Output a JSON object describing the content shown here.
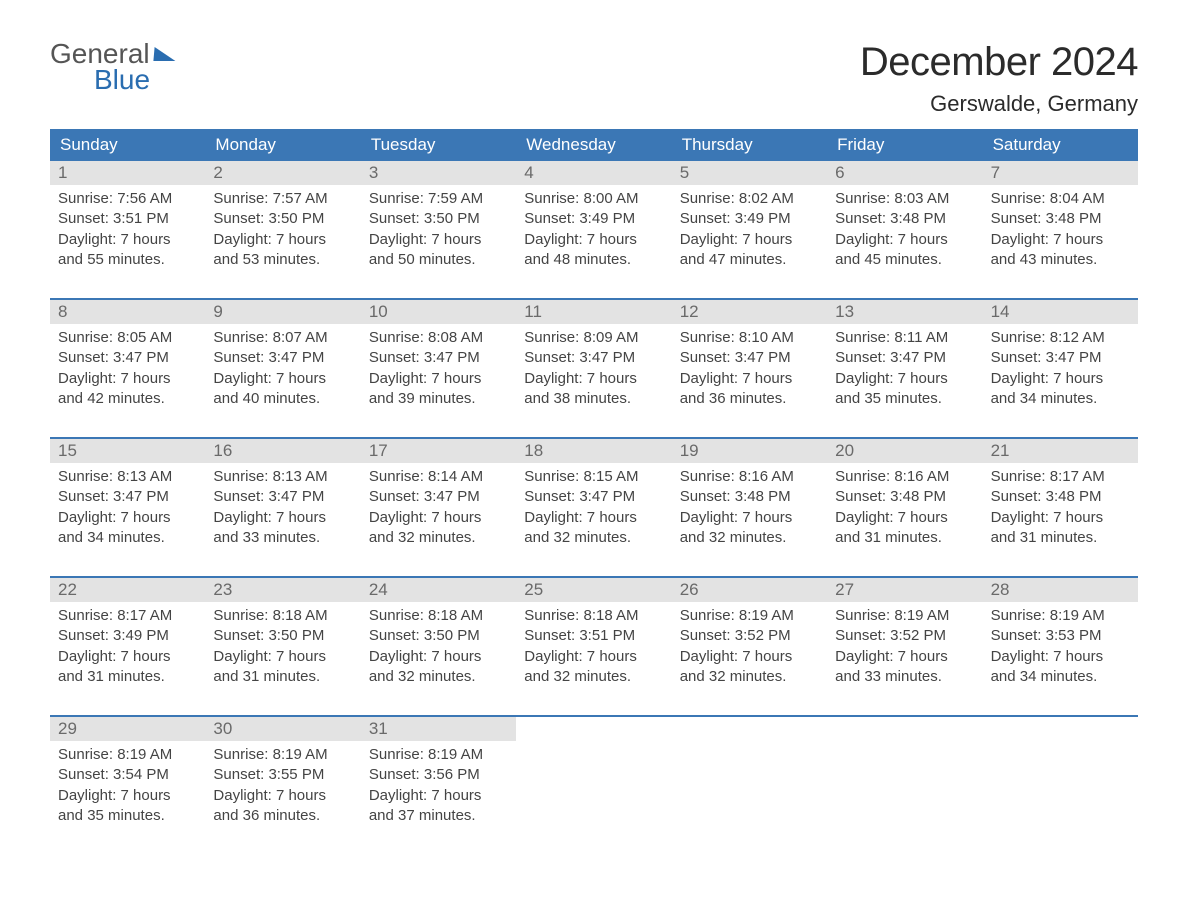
{
  "logo": {
    "top": "General",
    "bottom": "Blue"
  },
  "title": {
    "month": "December 2024",
    "location": "Gerswalde, Germany"
  },
  "colors": {
    "header_bg": "#3b77b5",
    "header_text": "#ffffff",
    "daynum_bg": "#e3e3e3",
    "daynum_text": "#6a6a6a",
    "body_text": "#444444",
    "rule": "#3b77b5",
    "logo_blue": "#2a6db0"
  },
  "weekdays": [
    "Sunday",
    "Monday",
    "Tuesday",
    "Wednesday",
    "Thursday",
    "Friday",
    "Saturday"
  ],
  "weeks": [
    [
      {
        "d": "1",
        "sunrise": "Sunrise: 7:56 AM",
        "sunset": "Sunset: 3:51 PM",
        "dl1": "Daylight: 7 hours",
        "dl2": "and 55 minutes."
      },
      {
        "d": "2",
        "sunrise": "Sunrise: 7:57 AM",
        "sunset": "Sunset: 3:50 PM",
        "dl1": "Daylight: 7 hours",
        "dl2": "and 53 minutes."
      },
      {
        "d": "3",
        "sunrise": "Sunrise: 7:59 AM",
        "sunset": "Sunset: 3:50 PM",
        "dl1": "Daylight: 7 hours",
        "dl2": "and 50 minutes."
      },
      {
        "d": "4",
        "sunrise": "Sunrise: 8:00 AM",
        "sunset": "Sunset: 3:49 PM",
        "dl1": "Daylight: 7 hours",
        "dl2": "and 48 minutes."
      },
      {
        "d": "5",
        "sunrise": "Sunrise: 8:02 AM",
        "sunset": "Sunset: 3:49 PM",
        "dl1": "Daylight: 7 hours",
        "dl2": "and 47 minutes."
      },
      {
        "d": "6",
        "sunrise": "Sunrise: 8:03 AM",
        "sunset": "Sunset: 3:48 PM",
        "dl1": "Daylight: 7 hours",
        "dl2": "and 45 minutes."
      },
      {
        "d": "7",
        "sunrise": "Sunrise: 8:04 AM",
        "sunset": "Sunset: 3:48 PM",
        "dl1": "Daylight: 7 hours",
        "dl2": "and 43 minutes."
      }
    ],
    [
      {
        "d": "8",
        "sunrise": "Sunrise: 8:05 AM",
        "sunset": "Sunset: 3:47 PM",
        "dl1": "Daylight: 7 hours",
        "dl2": "and 42 minutes."
      },
      {
        "d": "9",
        "sunrise": "Sunrise: 8:07 AM",
        "sunset": "Sunset: 3:47 PM",
        "dl1": "Daylight: 7 hours",
        "dl2": "and 40 minutes."
      },
      {
        "d": "10",
        "sunrise": "Sunrise: 8:08 AM",
        "sunset": "Sunset: 3:47 PM",
        "dl1": "Daylight: 7 hours",
        "dl2": "and 39 minutes."
      },
      {
        "d": "11",
        "sunrise": "Sunrise: 8:09 AM",
        "sunset": "Sunset: 3:47 PM",
        "dl1": "Daylight: 7 hours",
        "dl2": "and 38 minutes."
      },
      {
        "d": "12",
        "sunrise": "Sunrise: 8:10 AM",
        "sunset": "Sunset: 3:47 PM",
        "dl1": "Daylight: 7 hours",
        "dl2": "and 36 minutes."
      },
      {
        "d": "13",
        "sunrise": "Sunrise: 8:11 AM",
        "sunset": "Sunset: 3:47 PM",
        "dl1": "Daylight: 7 hours",
        "dl2": "and 35 minutes."
      },
      {
        "d": "14",
        "sunrise": "Sunrise: 8:12 AM",
        "sunset": "Sunset: 3:47 PM",
        "dl1": "Daylight: 7 hours",
        "dl2": "and 34 minutes."
      }
    ],
    [
      {
        "d": "15",
        "sunrise": "Sunrise: 8:13 AM",
        "sunset": "Sunset: 3:47 PM",
        "dl1": "Daylight: 7 hours",
        "dl2": "and 34 minutes."
      },
      {
        "d": "16",
        "sunrise": "Sunrise: 8:13 AM",
        "sunset": "Sunset: 3:47 PM",
        "dl1": "Daylight: 7 hours",
        "dl2": "and 33 minutes."
      },
      {
        "d": "17",
        "sunrise": "Sunrise: 8:14 AM",
        "sunset": "Sunset: 3:47 PM",
        "dl1": "Daylight: 7 hours",
        "dl2": "and 32 minutes."
      },
      {
        "d": "18",
        "sunrise": "Sunrise: 8:15 AM",
        "sunset": "Sunset: 3:47 PM",
        "dl1": "Daylight: 7 hours",
        "dl2": "and 32 minutes."
      },
      {
        "d": "19",
        "sunrise": "Sunrise: 8:16 AM",
        "sunset": "Sunset: 3:48 PM",
        "dl1": "Daylight: 7 hours",
        "dl2": "and 32 minutes."
      },
      {
        "d": "20",
        "sunrise": "Sunrise: 8:16 AM",
        "sunset": "Sunset: 3:48 PM",
        "dl1": "Daylight: 7 hours",
        "dl2": "and 31 minutes."
      },
      {
        "d": "21",
        "sunrise": "Sunrise: 8:17 AM",
        "sunset": "Sunset: 3:48 PM",
        "dl1": "Daylight: 7 hours",
        "dl2": "and 31 minutes."
      }
    ],
    [
      {
        "d": "22",
        "sunrise": "Sunrise: 8:17 AM",
        "sunset": "Sunset: 3:49 PM",
        "dl1": "Daylight: 7 hours",
        "dl2": "and 31 minutes."
      },
      {
        "d": "23",
        "sunrise": "Sunrise: 8:18 AM",
        "sunset": "Sunset: 3:50 PM",
        "dl1": "Daylight: 7 hours",
        "dl2": "and 31 minutes."
      },
      {
        "d": "24",
        "sunrise": "Sunrise: 8:18 AM",
        "sunset": "Sunset: 3:50 PM",
        "dl1": "Daylight: 7 hours",
        "dl2": "and 32 minutes."
      },
      {
        "d": "25",
        "sunrise": "Sunrise: 8:18 AM",
        "sunset": "Sunset: 3:51 PM",
        "dl1": "Daylight: 7 hours",
        "dl2": "and 32 minutes."
      },
      {
        "d": "26",
        "sunrise": "Sunrise: 8:19 AM",
        "sunset": "Sunset: 3:52 PM",
        "dl1": "Daylight: 7 hours",
        "dl2": "and 32 minutes."
      },
      {
        "d": "27",
        "sunrise": "Sunrise: 8:19 AM",
        "sunset": "Sunset: 3:52 PM",
        "dl1": "Daylight: 7 hours",
        "dl2": "and 33 minutes."
      },
      {
        "d": "28",
        "sunrise": "Sunrise: 8:19 AM",
        "sunset": "Sunset: 3:53 PM",
        "dl1": "Daylight: 7 hours",
        "dl2": "and 34 minutes."
      }
    ],
    [
      {
        "d": "29",
        "sunrise": "Sunrise: 8:19 AM",
        "sunset": "Sunset: 3:54 PM",
        "dl1": "Daylight: 7 hours",
        "dl2": "and 35 minutes."
      },
      {
        "d": "30",
        "sunrise": "Sunrise: 8:19 AM",
        "sunset": "Sunset: 3:55 PM",
        "dl1": "Daylight: 7 hours",
        "dl2": "and 36 minutes."
      },
      {
        "d": "31",
        "sunrise": "Sunrise: 8:19 AM",
        "sunset": "Sunset: 3:56 PM",
        "dl1": "Daylight: 7 hours",
        "dl2": "and 37 minutes."
      },
      null,
      null,
      null,
      null
    ]
  ]
}
